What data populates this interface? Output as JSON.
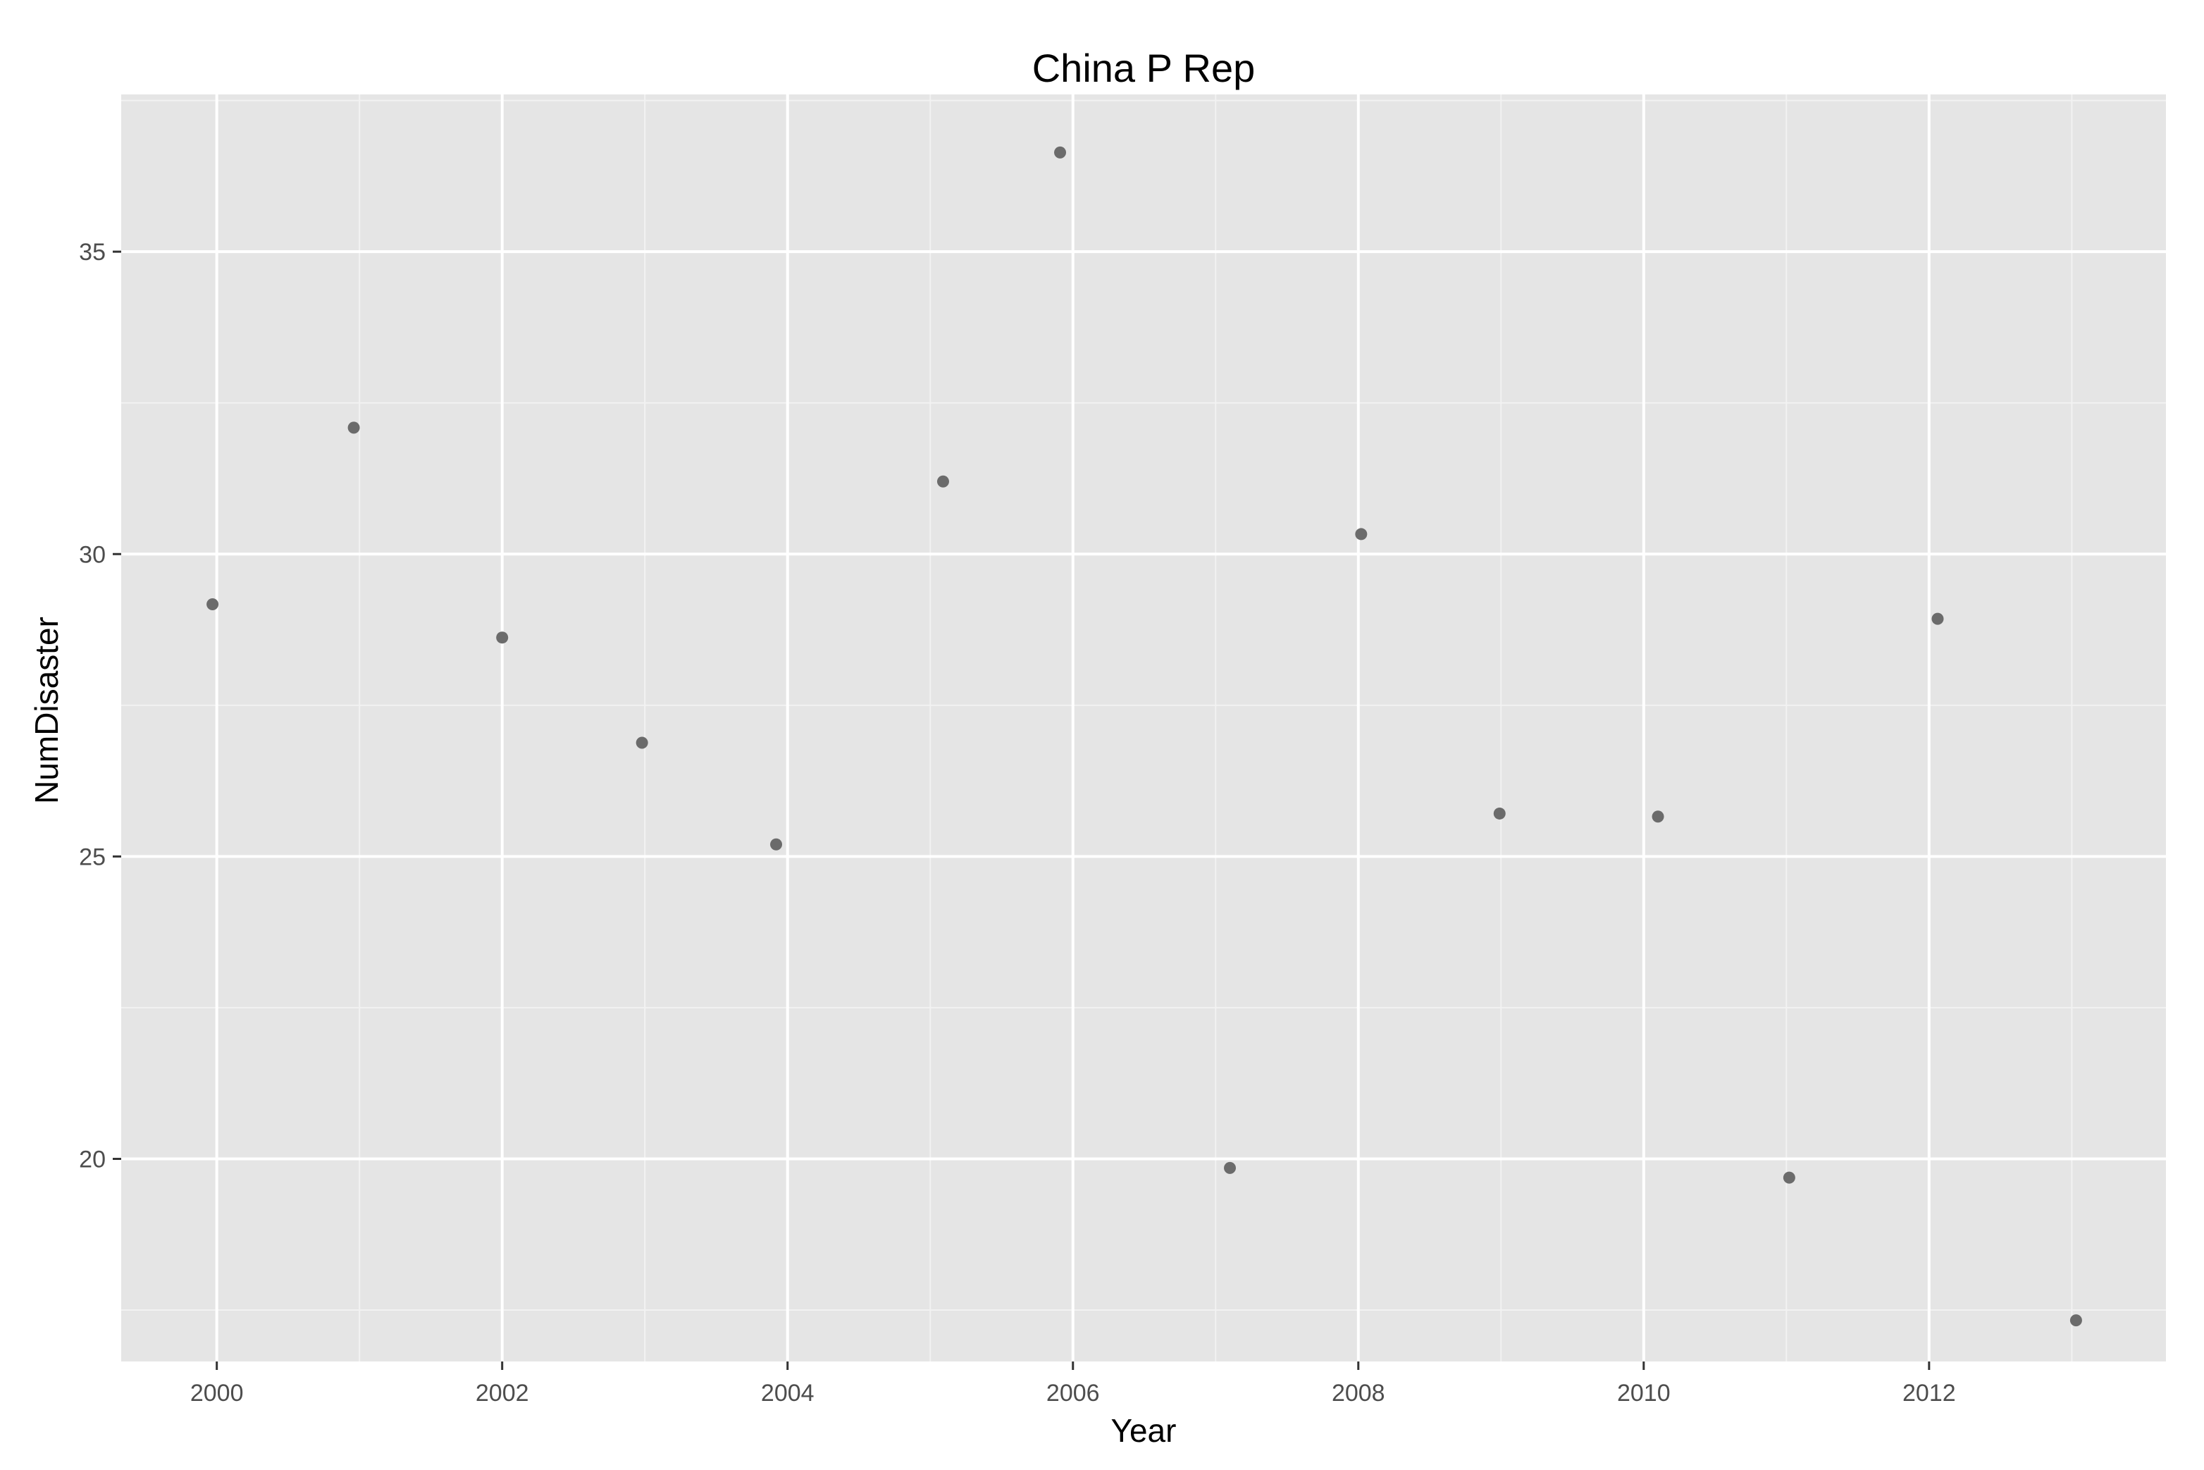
{
  "chart_data": {
    "type": "scatter",
    "title": "China P Rep",
    "xlabel": "Year",
    "ylabel": "NumDisaster",
    "xlim": [
      1999.33,
      2013.66
    ],
    "ylim": [
      16.65,
      37.6
    ],
    "x_ticks": [
      2000,
      2002,
      2004,
      2006,
      2008,
      2010,
      2012
    ],
    "y_ticks": [
      20,
      25,
      30,
      35
    ],
    "grid": true,
    "legend": "none",
    "colors": {
      "panel_background": "#e5e5e5",
      "grid_major": "#ffffff",
      "grid_minor": "#f2f2f2",
      "point": "#6b6b6b",
      "tick_text": "#4d4d4d"
    },
    "series": [
      {
        "points": [
          {
            "x": 1999.97,
            "y": 29.17
          },
          {
            "x": 2000.96,
            "y": 32.09
          },
          {
            "x": 2002.0,
            "y": 28.62
          },
          {
            "x": 2002.98,
            "y": 26.88
          },
          {
            "x": 2003.92,
            "y": 25.2
          },
          {
            "x": 2005.09,
            "y": 31.2
          },
          {
            "x": 2005.91,
            "y": 36.64
          },
          {
            "x": 2007.1,
            "y": 19.85
          },
          {
            "x": 2008.02,
            "y": 30.33
          },
          {
            "x": 2008.99,
            "y": 25.71
          },
          {
            "x": 2010.1,
            "y": 25.66
          },
          {
            "x": 2011.02,
            "y": 19.69
          },
          {
            "x": 2012.06,
            "y": 28.93
          },
          {
            "x": 2013.03,
            "y": 17.33
          }
        ]
      }
    ]
  }
}
